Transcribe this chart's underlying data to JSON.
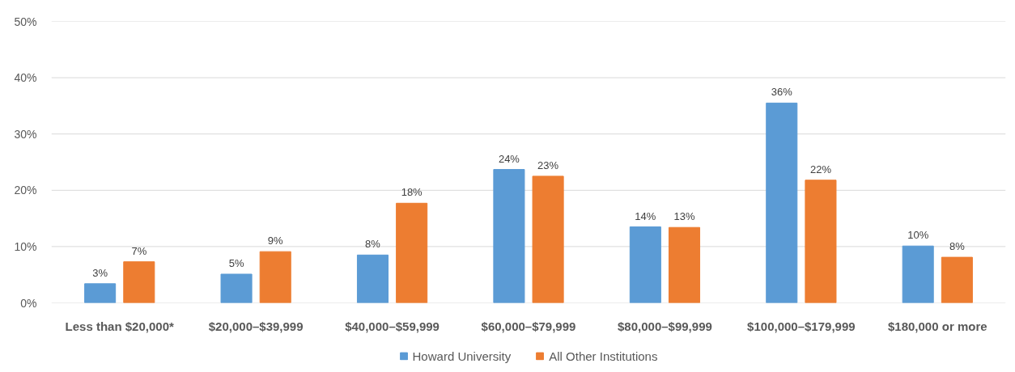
{
  "chart_data": {
    "type": "bar",
    "categories": [
      "Less than $20,000*",
      "$20,000–$39,999",
      "$40,000–$59,999",
      "$60,000–$79,999",
      "$80,000–$99,999",
      "$100,000–$179,999",
      "$180,000 or more"
    ],
    "series": [
      {
        "name": "Howard University",
        "color": "#5b9bd5",
        "values": [
          3.4,
          5.1,
          8.5,
          23.7,
          13.5,
          35.5,
          10.1
        ],
        "value_labels": [
          "3%",
          "5%",
          "8%",
          "24%",
          "14%",
          "36%",
          "10%"
        ]
      },
      {
        "name": "All Other Institutions",
        "color": "#ed7d31",
        "values": [
          7.3,
          9.1,
          17.7,
          22.5,
          13.4,
          21.8,
          8.1
        ],
        "value_labels": [
          "7%",
          "9%",
          "18%",
          "23%",
          "13%",
          "22%",
          "8%"
        ]
      }
    ],
    "ylim": [
      0,
      50
    ],
    "yticks": [
      {
        "value": 0,
        "label": "0%"
      },
      {
        "value": 10,
        "label": "10%"
      },
      {
        "value": 20,
        "label": "20%"
      },
      {
        "value": 30,
        "label": "30%"
      },
      {
        "value": 40,
        "label": "40%"
      },
      {
        "value": 50,
        "label": "50%"
      }
    ],
    "grid": "y",
    "legend": "bottom"
  }
}
